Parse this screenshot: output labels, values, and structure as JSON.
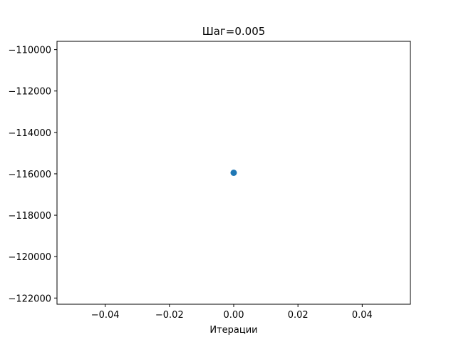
{
  "chart_data": {
    "type": "scatter",
    "title": "Шаг=0.005",
    "xlabel": "Итерации",
    "ylabel": "",
    "xlim": [
      -0.055,
      0.055
    ],
    "ylim": [
      -122300,
      -109600
    ],
    "xticks": [
      -0.04,
      -0.02,
      0.0,
      0.02,
      0.04
    ],
    "xtick_labels": [
      "−0.04",
      "−0.02",
      "0.00",
      "0.02",
      "0.04"
    ],
    "yticks": [
      -110000,
      -112000,
      -114000,
      -116000,
      -118000,
      -120000,
      -122000
    ],
    "ytick_labels": [
      "−110000",
      "−112000",
      "−114000",
      "−116000",
      "−118000",
      "−120000",
      "−122000"
    ],
    "grid": false,
    "points": [
      {
        "x": 0.0,
        "y": -115950
      }
    ],
    "point_color": "#1f77b4"
  }
}
